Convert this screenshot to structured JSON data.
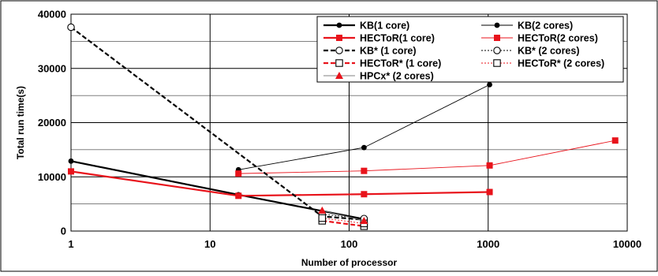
{
  "chart_data": {
    "type": "line",
    "title": "",
    "xlabel": "Number of processor",
    "ylabel": "Total run time(s)",
    "x_scale": "log",
    "xlim": [
      1,
      10000
    ],
    "ylim": [
      0,
      40000
    ],
    "x_ticks": [
      1,
      10,
      100,
      1000,
      10000
    ],
    "x_tick_labels": [
      "1",
      "10",
      "100",
      "1000",
      "10000"
    ],
    "y_ticks": [
      0,
      10000,
      20000,
      30000,
      40000
    ],
    "y_tick_labels": [
      "0",
      "10000",
      "20000",
      "30000",
      "40000"
    ],
    "y_minor_gridlines": [
      5000,
      15000,
      25000,
      35000
    ],
    "grid": true,
    "legend_placement": "top-right",
    "series": [
      {
        "name": "KB(1 core)",
        "color": "#000000",
        "line_style": "solid",
        "line_weight": "thick",
        "marker": "dot",
        "points": [
          [
            1,
            12900
          ],
          [
            16,
            6700
          ],
          [
            128,
            2200
          ]
        ]
      },
      {
        "name": "KB(2 cores)",
        "color": "#000000",
        "line_style": "solid",
        "line_weight": "thin",
        "marker": "dot",
        "points": [
          [
            16,
            11300
          ],
          [
            128,
            15400
          ],
          [
            1024,
            27000
          ]
        ]
      },
      {
        "name": "HECToR(1 core)",
        "color": "#e8131b",
        "line_style": "solid",
        "line_weight": "thick",
        "marker": "square",
        "points": [
          [
            1,
            11000
          ],
          [
            16,
            6500
          ],
          [
            128,
            6800
          ],
          [
            1024,
            7200
          ]
        ]
      },
      {
        "name": "HECToR(2 cores)",
        "color": "#e8131b",
        "line_style": "solid",
        "line_weight": "thin",
        "marker": "square",
        "points": [
          [
            16,
            10600
          ],
          [
            128,
            11100
          ],
          [
            1024,
            12100
          ],
          [
            8192,
            16700
          ]
        ]
      },
      {
        "name": "KB* (1 core)",
        "color": "#000000",
        "line_style": "dashed",
        "line_weight": "thick",
        "marker": "open-circle",
        "points": [
          [
            1,
            37600
          ],
          [
            64,
            2700
          ],
          [
            128,
            2100
          ]
        ]
      },
      {
        "name": "KB* (2 cores)",
        "color": "#000000",
        "line_style": "dotted",
        "line_weight": "thin",
        "marker": "open-circle",
        "points": [
          [
            64,
            3100
          ],
          [
            128,
            2300
          ]
        ]
      },
      {
        "name": "HECToR* (1 core)",
        "color": "#e8131b",
        "line_style": "dashed",
        "line_weight": "thick",
        "marker": "open-square",
        "points": [
          [
            64,
            1900
          ],
          [
            128,
            900
          ]
        ]
      },
      {
        "name": "HECToR* (2 cores)",
        "color": "#e8131b",
        "line_style": "dotted",
        "line_weight": "thin",
        "marker": "open-square",
        "points": [
          [
            64,
            2400
          ],
          [
            128,
            1400
          ]
        ]
      },
      {
        "name": "HPCx* (2 cores)",
        "color": "#808080",
        "marker_color": "#e8131b",
        "line_style": "solid",
        "line_weight": "thin",
        "marker": "triangle",
        "points": [
          [
            64,
            3800
          ],
          [
            128,
            1900
          ]
        ]
      }
    ]
  }
}
